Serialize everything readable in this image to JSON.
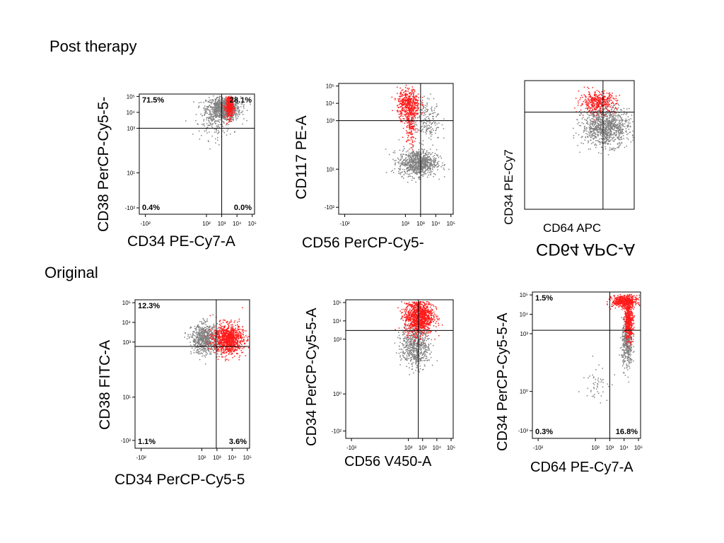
{
  "sections": [
    {
      "title": "Post therapy"
    },
    {
      "title": "Original"
    }
  ],
  "colors": {
    "population_a": "#ff1a1a",
    "population_b": "#808080",
    "gate_line": "#000000"
  },
  "chart_data": [
    {
      "type": "scatter",
      "axis_scale": "biexponential",
      "xlabel": "CD34 PE-Cy7-A",
      "ylabel": "CD38 PerCP-Cy5-5-",
      "x_ticks": [
        "-10²",
        "10²",
        "10³",
        "10⁴",
        "10⁵"
      ],
      "y_ticks": [
        "-10²",
        "10¹",
        "10³",
        "10⁴",
        "10⁵"
      ],
      "quadrant_percent_labels": [
        "71.5%",
        "28.1%",
        "0.4%",
        "0.0%"
      ],
      "gate": {
        "x": 1000,
        "y": 1000
      },
      "series": [
        {
          "color": "#808080",
          "clusters": [
            {
              "x": 1200,
              "y": 18000,
              "n": 900,
              "x_spread": 0.45,
              "y_spread": 0.3
            },
            {
              "x": 300,
              "y": 2000,
              "n": 120,
              "x_spread": 0.5,
              "y_spread": 0.4
            }
          ]
        },
        {
          "color": "#ff1a1a",
          "clusters": [
            {
              "x": 3000,
              "y": 25000,
              "n": 350,
              "x_spread": 0.1,
              "y_spread": 0.3
            }
          ]
        }
      ]
    },
    {
      "type": "scatter",
      "axis_scale": "biexponential",
      "xlabel": "CD56 PerCP-Cy5-",
      "ylabel": "CD117 PE-A",
      "x_ticks": [
        "-10²",
        "10²",
        "10³",
        "10⁴",
        "10⁵"
      ],
      "y_ticks": [
        "-10²",
        "10¹",
        "10³",
        "10⁴",
        "10⁵"
      ],
      "quadrant_percent_labels": [],
      "gate": {
        "x": 1000,
        "y": 1000
      },
      "series": [
        {
          "color": "#808080",
          "clusters": [
            {
              "x": 600,
              "y": 30,
              "n": 850,
              "x_spread": 0.5,
              "y_spread": 0.3
            },
            {
              "x": 2000,
              "y": 1200,
              "n": 200,
              "x_spread": 0.4,
              "y_spread": 0.5
            }
          ]
        },
        {
          "color": "#ff1a1a",
          "clusters": [
            {
              "x": 150,
              "y": 10000,
              "n": 450,
              "x_spread": 0.3,
              "y_spread": 0.35
            },
            {
              "x": 200,
              "y": 600,
              "n": 150,
              "x_spread": 0.15,
              "y_spread": 0.5
            }
          ]
        }
      ]
    },
    {
      "type": "scatter",
      "axis_scale": "biexponential",
      "xlabel": "CD64 APC",
      "ylabel": "CD34 PE-Cy7",
      "x_ticks": [],
      "y_ticks": [],
      "quadrant_percent_labels": [],
      "extra_labels": [
        "CD64 APC-A"
      ],
      "gate": {
        "x": 1000,
        "y": 2000
      },
      "series": [
        {
          "color": "#808080",
          "clusters": [
            {
              "x": 1500,
              "y": 300,
              "n": 1000,
              "x_spread": 0.65,
              "y_spread": 0.45
            }
          ]
        },
        {
          "color": "#ff1a1a",
          "clusters": [
            {
              "x": 400,
              "y": 8000,
              "n": 400,
              "x_spread": 0.5,
              "y_spread": 0.25
            }
          ]
        }
      ]
    },
    {
      "type": "scatter",
      "axis_scale": "biexponential",
      "xlabel": "CD34 PerCP-Cy5-5",
      "ylabel": "CD38 FITC-A",
      "x_ticks": [
        "-10²",
        "10²",
        "10³",
        "10⁴",
        "10⁵"
      ],
      "y_ticks": [
        "-10²",
        "10¹",
        "10³",
        "10⁴",
        "10⁵"
      ],
      "quadrant_percent_labels": [
        "12.3%",
        "",
        "1.1%",
        "3.6%"
      ],
      "gate": {
        "x": 900,
        "y": 600
      },
      "series": [
        {
          "color": "#808080",
          "clusters": [
            {
              "x": 150,
              "y": 1500,
              "n": 650,
              "x_spread": 0.35,
              "y_spread": 0.3
            }
          ]
        },
        {
          "color": "#ff1a1a",
          "clusters": [
            {
              "x": 5000,
              "y": 1500,
              "n": 1000,
              "x_spread": 0.4,
              "y_spread": 0.3
            }
          ]
        }
      ]
    },
    {
      "type": "scatter",
      "axis_scale": "biexponential",
      "xlabel": "CD56 V450-A",
      "ylabel": "CD34 PerCP-Cy5-5-A",
      "x_ticks": [
        "-10²",
        "10²",
        "10³",
        "10⁴",
        "10⁵"
      ],
      "y_ticks": [
        "-10²",
        "10⁰",
        "10³",
        "10⁴",
        "10⁵"
      ],
      "quadrant_percent_labels": [],
      "gate": {
        "x": 500,
        "y": 3000
      },
      "series": [
        {
          "color": "#808080",
          "clusters": [
            {
              "x": 300,
              "y": 500,
              "n": 650,
              "x_spread": 0.4,
              "y_spread": 0.5
            }
          ]
        },
        {
          "color": "#ff1a1a",
          "clusters": [
            {
              "x": 500,
              "y": 20000,
              "n": 1100,
              "x_spread": 0.4,
              "y_spread": 0.4
            }
          ]
        }
      ]
    },
    {
      "type": "scatter",
      "axis_scale": "biexponential",
      "xlabel": "CD64 PE-Cy7-A",
      "ylabel": "CD34 PerCP-Cy5-5-A",
      "x_ticks": [
        "-10²",
        "10²",
        "10³",
        "10⁴",
        "10⁵"
      ],
      "y_ticks": [
        "-10²",
        "10⁰",
        "10³",
        "10⁴",
        "10⁵"
      ],
      "quadrant_percent_labels": [
        "1.5%",
        "",
        "0.3%",
        "16.8%"
      ],
      "gate": {
        "x": 1000,
        "y": 1500
      },
      "series": [
        {
          "color": "#808080",
          "clusters": [
            {
              "x": 15000,
              "y": 300,
              "n": 400,
              "x_spread": 0.15,
              "y_spread": 0.5
            },
            {
              "x": 100,
              "y": 30,
              "n": 50,
              "x_spread": 0.35,
              "y_spread": 0.4
            }
          ]
        },
        {
          "color": "#ff1a1a",
          "clusters": [
            {
              "x": 10000,
              "y": 50000,
              "n": 500,
              "x_spread": 0.35,
              "y_spread": 0.12
            },
            {
              "x": 20000,
              "y": 5000,
              "n": 450,
              "x_spread": 0.12,
              "y_spread": 0.4
            }
          ]
        }
      ]
    }
  ]
}
